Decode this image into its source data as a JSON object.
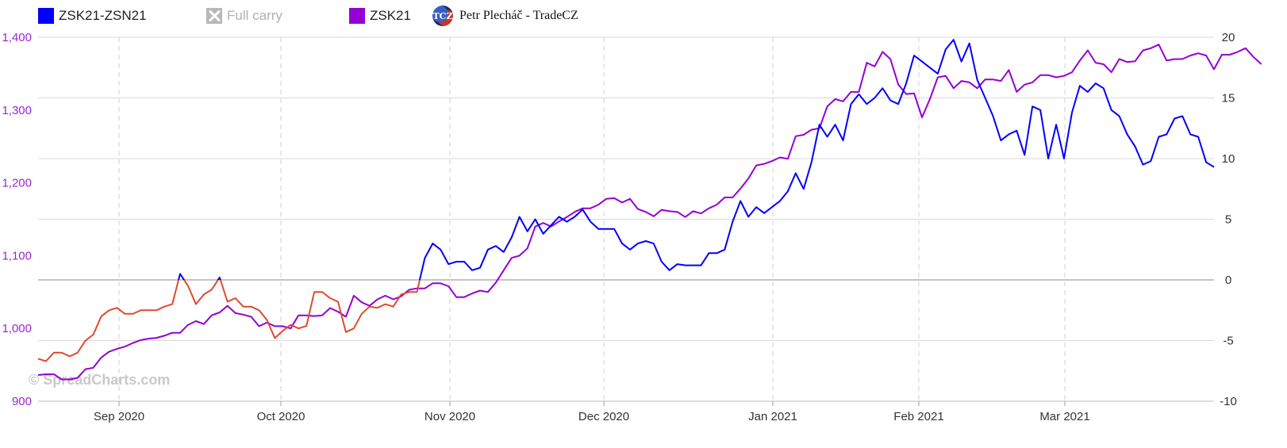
{
  "legend": {
    "items": [
      {
        "label": "ZSK21-ZSN21",
        "color": "#0000ff"
      },
      {
        "label": "Full carry",
        "color": "#b0b0b0"
      },
      {
        "label": "ZSK21",
        "color": "#9400d3"
      }
    ],
    "author": "Petr Plecháč - TradeCZ",
    "logo_text": "TCZ"
  },
  "watermark": "© SpreadCharts.com",
  "chart_data": {
    "type": "line",
    "x_tick_labels": [
      "Sep 2020",
      "Oct 2020",
      "Nov 2020",
      "Dec 2020",
      "Jan 2021",
      "Feb 2021",
      "Mar 2021"
    ],
    "y_left": {
      "ticks": [
        "900",
        "1,000",
        "1,100",
        "1,200",
        "1,300",
        "1,400"
      ],
      "min": 900,
      "max": 1400,
      "color": "#9b27d1"
    },
    "y_right": {
      "ticks": [
        "-10",
        "-5",
        "0",
        "5",
        "10",
        "15",
        "20"
      ],
      "min": -10,
      "max": 20
    },
    "grid": true,
    "colors": {
      "spread": "#0000ff",
      "spread_negative": "#e04a2f",
      "outright": "#9400d3",
      "zero_line": "#888888"
    },
    "series": [
      {
        "name": "ZSK21-ZSN21",
        "axis": "right",
        "values": [
          -6.5,
          -6.7,
          -6.0,
          -6.0,
          -6.3,
          -6.0,
          -5.0,
          -4.5,
          -3.0,
          -2.5,
          -2.3,
          -2.8,
          -2.8,
          -2.5,
          -2.5,
          -2.5,
          -2.2,
          -2.0,
          0.5,
          -0.5,
          -2.0,
          -1.2,
          -0.8,
          0.2,
          -1.8,
          -1.5,
          -2.2,
          -2.2,
          -2.5,
          -3.3,
          -4.8,
          -4.2,
          -3.7,
          -4.0,
          -3.8,
          -1.0,
          -1.0,
          -1.5,
          -1.8,
          -4.3,
          -4.0,
          -2.8,
          -2.2,
          -2.3,
          -2.0,
          -2.2,
          -1.2,
          -1.0,
          -1.0,
          1.8,
          3.0,
          2.5,
          1.3,
          1.5,
          1.5,
          0.8,
          1.0,
          2.5,
          2.8,
          2.3,
          3.5,
          5.2,
          4.0,
          5.0,
          3.8,
          4.5,
          5.2,
          4.8,
          5.2,
          5.8,
          4.8,
          4.2,
          4.2,
          4.2,
          3.0,
          2.5,
          3.0,
          3.2,
          3.0,
          1.5,
          0.8,
          1.3,
          1.2,
          1.2,
          1.2,
          2.2,
          2.2,
          2.5,
          4.8,
          6.5,
          5.2,
          6.0,
          5.5,
          6.0,
          6.5,
          7.3,
          8.8,
          7.5,
          9.7,
          12.8,
          11.8,
          12.8,
          11.5,
          14.5,
          15.3,
          14.5,
          15.0,
          15.8,
          14.8,
          14.5,
          16.2,
          18.5,
          18.0,
          17.5,
          17.0,
          19.0,
          19.8,
          18.0,
          19.5,
          16.5,
          15.0,
          13.5,
          11.5,
          12.0,
          12.3,
          10.3,
          14.3,
          14.0,
          10.0,
          12.8,
          10.0,
          13.8,
          16.0,
          15.5,
          16.2,
          15.8,
          14.0,
          13.5,
          12.0,
          11.0,
          9.5,
          9.8,
          11.8,
          12.0,
          13.3,
          13.5,
          12.0,
          11.8,
          9.7,
          9.3
        ]
      },
      {
        "name": "ZSK21",
        "axis": "left",
        "values": [
          936,
          937,
          937,
          930,
          930,
          932,
          944,
          946,
          960,
          968,
          972,
          975,
          980,
          984,
          986,
          987,
          990,
          994,
          994,
          1005,
          1010,
          1006,
          1018,
          1022,
          1031,
          1021,
          1019,
          1016,
          1003,
          1008,
          1003,
          1003,
          1000,
          1018,
          1018,
          1017,
          1018,
          1028,
          1023,
          1016,
          1045,
          1036,
          1031,
          1040,
          1045,
          1040,
          1044,
          1053,
          1055,
          1055,
          1062,
          1062,
          1058,
          1043,
          1043,
          1048,
          1052,
          1050,
          1063,
          1080,
          1097,
          1100,
          1110,
          1140,
          1145,
          1140,
          1147,
          1153,
          1160,
          1165,
          1165,
          1170,
          1178,
          1179,
          1173,
          1178,
          1164,
          1160,
          1154,
          1163,
          1161,
          1160,
          1153,
          1161,
          1158,
          1165,
          1170,
          1180,
          1180,
          1192,
          1206,
          1224,
          1226,
          1230,
          1235,
          1233,
          1264,
          1266,
          1273,
          1275,
          1305,
          1315,
          1312,
          1325,
          1325,
          1365,
          1360,
          1380,
          1370,
          1335,
          1322,
          1323,
          1290,
          1315,
          1345,
          1347,
          1330,
          1340,
          1338,
          1330,
          1342,
          1342,
          1340,
          1355,
          1325,
          1335,
          1338,
          1348,
          1348,
          1345,
          1347,
          1352,
          1368,
          1382,
          1365,
          1363,
          1352,
          1370,
          1366,
          1367,
          1382,
          1385,
          1390,
          1368,
          1370,
          1370,
          1375,
          1378,
          1375,
          1356,
          1376,
          1376,
          1380,
          1385,
          1373,
          1363
        ]
      }
    ]
  }
}
